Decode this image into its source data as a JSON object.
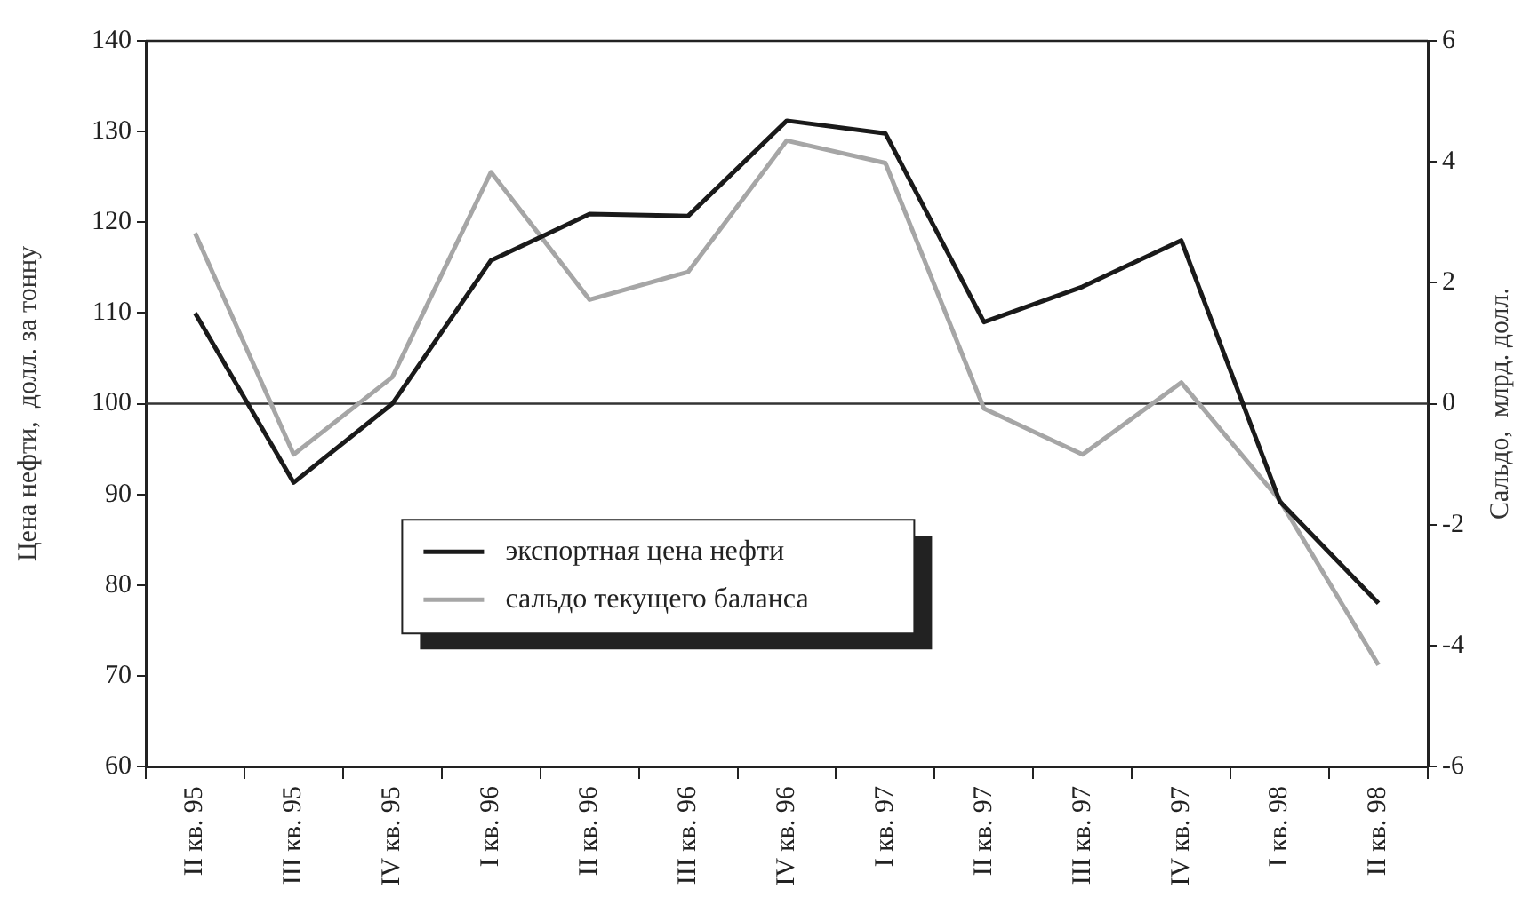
{
  "chart_data": {
    "type": "line",
    "ylabel": "Цена нефти,  долл. за тонну",
    "y2label": "Сальдо,  млрд. долл.",
    "categories": [
      "II кв. 95",
      "III кв. 95",
      "IV кв. 95",
      "I кв. 96",
      "II кв. 96",
      "III кв. 96",
      "IV кв. 96",
      "I кв. 97",
      "II кв. 97",
      "III кв. 97",
      "IV кв. 97",
      "I кв. 98",
      "II кв. 98"
    ],
    "series": [
      {
        "name": "экспортная цена нефти",
        "color": "#1a1a1a",
        "values": [
          110,
          91.3,
          100,
          115.8,
          120.9,
          120.7,
          131.2,
          129.8,
          109,
          112.9,
          118,
          89.2,
          78
        ]
      },
      {
        "name": "сальдо текущего баланса",
        "color": "#a6a6a6",
        "axis": "y2",
        "values": [
          2.82,
          -0.84,
          0.44,
          3.83,
          1.72,
          2.18,
          4.35,
          3.98,
          -0.08,
          -0.84,
          0.35,
          -1.6,
          -4.32
        ]
      }
    ],
    "ylim": [
      60,
      140
    ],
    "yticks": [
      60,
      70,
      80,
      90,
      100,
      110,
      120,
      130,
      140
    ],
    "y2lim": [
      -6,
      6
    ],
    "y2ticks": [
      -6,
      -4,
      -2,
      0,
      2,
      4,
      6
    ],
    "ref_lines": [
      {
        "axis": "y2",
        "value": 0,
        "color": "#333333"
      }
    ],
    "grid": false,
    "legend": "bottom left",
    "marker": "none",
    "line_style": "solid"
  }
}
